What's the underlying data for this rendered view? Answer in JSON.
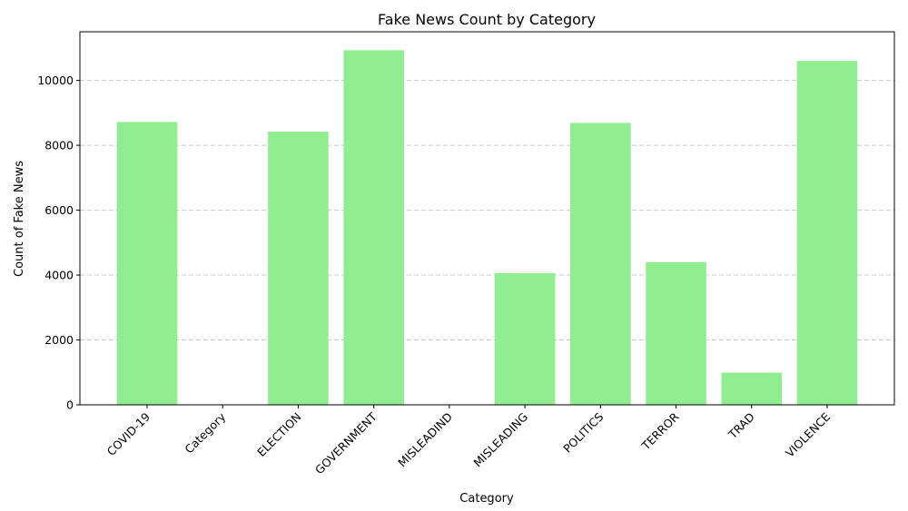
{
  "chart_data": {
    "type": "bar",
    "title": "Fake News Count by Category",
    "xlabel": "Category",
    "ylabel": "Count of Fake News",
    "categories": [
      "COVID-19",
      "Category",
      "ELECTION",
      "GOVERNMENT",
      "MISLEADIND",
      "MISLEADING",
      "POLITICS",
      "TERROR",
      "TRAD",
      "VIOLENCE"
    ],
    "values": [
      8720,
      0,
      8420,
      10930,
      0,
      4060,
      8690,
      4400,
      990,
      10600
    ],
    "ylim": [
      0,
      11500
    ],
    "yticks": [
      0,
      2000,
      4000,
      6000,
      8000,
      10000
    ],
    "grid": "y-dashed",
    "bar_color": "#90ee90"
  }
}
